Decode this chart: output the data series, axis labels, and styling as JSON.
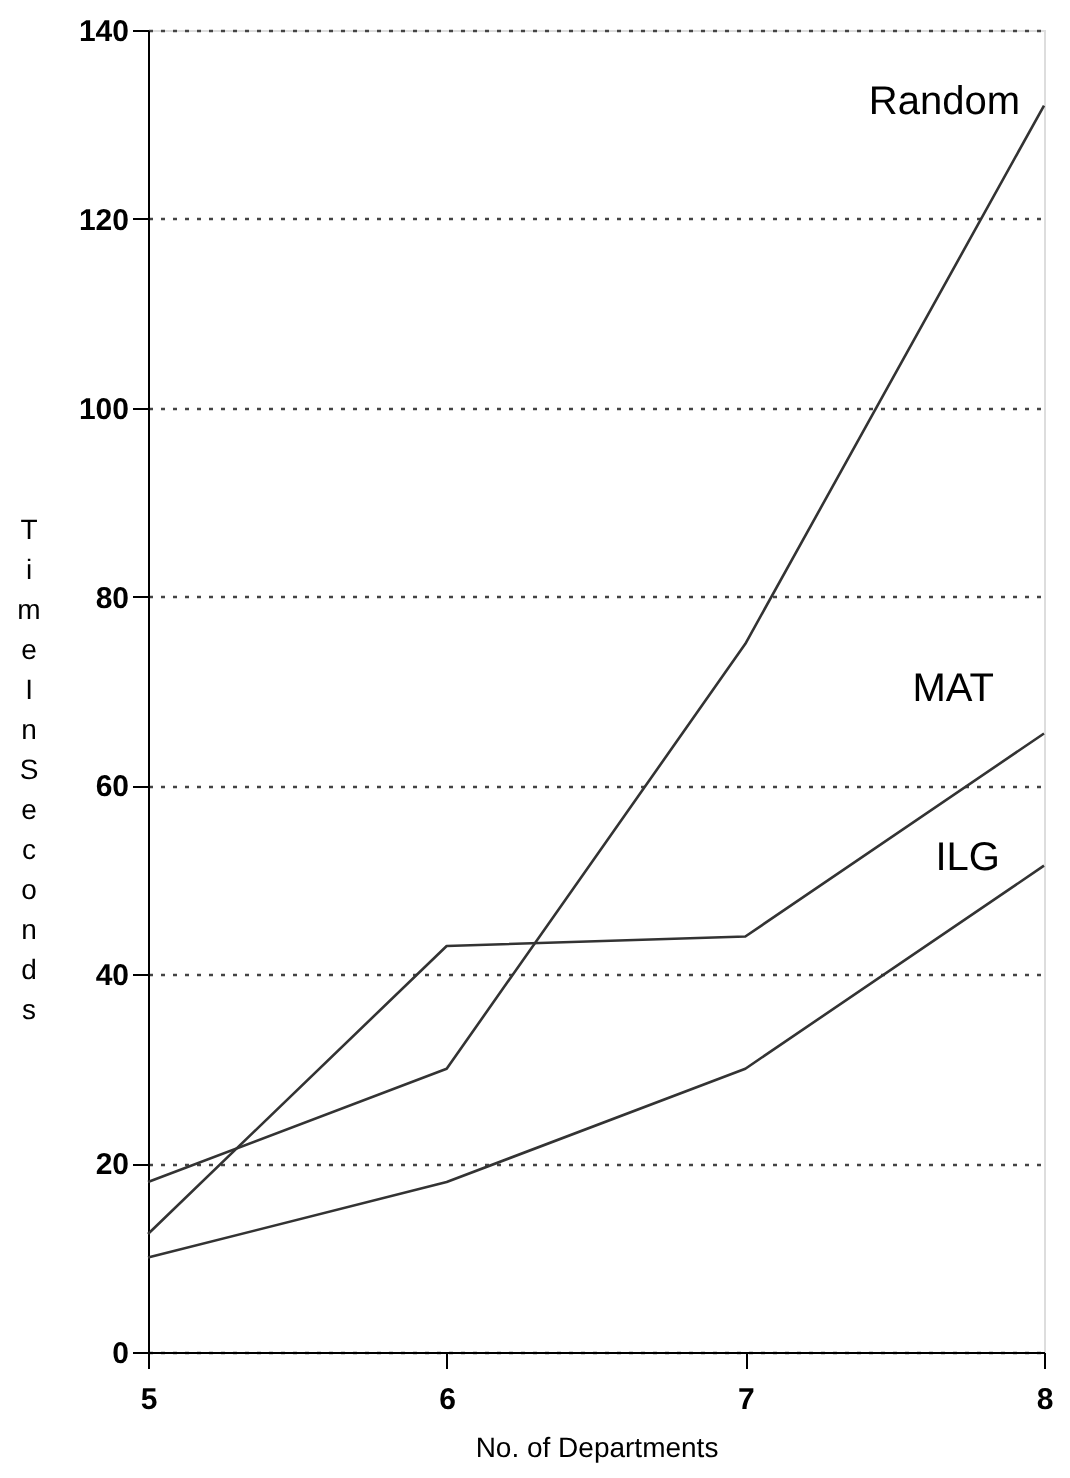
{
  "chart_data": {
    "type": "line",
    "xlabel": "No. of Departments",
    "ylabel": "Time In Seconds",
    "x": [
      5,
      6,
      7,
      8
    ],
    "xlim": [
      5,
      8
    ],
    "xticks": [
      5,
      6,
      7,
      8
    ],
    "ylim": [
      0,
      140
    ],
    "yticks": [
      0,
      20,
      40,
      60,
      80,
      100,
      120,
      140
    ],
    "grid": "y",
    "series": [
      {
        "name": "Random",
        "color": "#333333",
        "values": [
          18,
          30,
          75,
          132
        ]
      },
      {
        "name": "MAT",
        "color": "#333333",
        "values": [
          12.5,
          43,
          44,
          65.5
        ]
      },
      {
        "name": "ILG",
        "color": "#333333",
        "values": [
          10,
          18,
          30,
          51.5
        ]
      }
    ]
  }
}
